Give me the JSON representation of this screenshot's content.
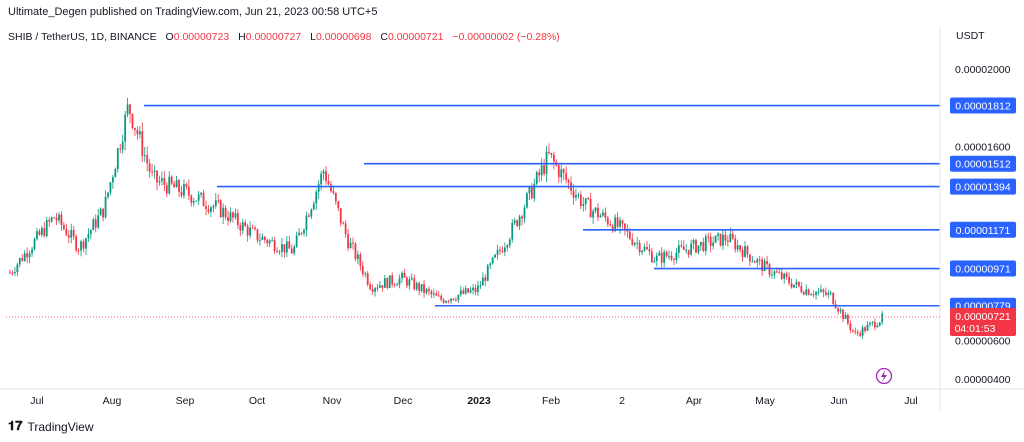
{
  "header": {
    "publisher": "Ultimate_Degen published on TradingView.com, Jun 21, 2023 00:58 UTC+5"
  },
  "symbol_bar": {
    "symbol": "SHIB / TetherUS, 1D, BINANCE",
    "open_label": "O",
    "open": "0.00000723",
    "high_label": "H",
    "high": "0.00000727",
    "low_label": "L",
    "low": "0.00000698",
    "close_label": "C",
    "close": "0.00000721",
    "change": "−0.00000002 (−0.28%)"
  },
  "footer": {
    "brand": "TradingView"
  },
  "colors": {
    "up": "#089981",
    "down": "#f23645",
    "level_line": "#2962ff",
    "price_tag": "#f23645"
  },
  "chart_data": {
    "type": "candlestick",
    "title": "SHIB / TetherUS, 1D, BINANCE",
    "currency": "USDT",
    "x_tick_labels": [
      "Jul",
      "Aug",
      "Sep",
      "Oct",
      "Nov",
      "Dec",
      "2023",
      "Feb",
      "2",
      "Apr",
      "May",
      "Jun",
      "Jul"
    ],
    "y_tick_labels": [
      "0.00002000",
      "0.00001600",
      "0.00000600",
      "0.00000400"
    ],
    "ylim": [
      3.7e-06,
      2.14e-05
    ],
    "grid": false,
    "levels": [
      {
        "value": "0.00001812",
        "start_month": "Aug"
      },
      {
        "value": "0.00001512",
        "start_month": "Nov"
      },
      {
        "value": "0.00001394",
        "start_month": "Sep"
      },
      {
        "value": "0.00001171",
        "start_month": "Feb"
      },
      {
        "value": "0.00000971",
        "start_month": "2"
      },
      {
        "value": "0.00000779",
        "start_month": "Dec"
      }
    ],
    "last_price": "0.00000721",
    "countdown": "04:01:53",
    "ohlc_points": [
      {
        "t": "Jul",
        "v": 9.5e-06
      },
      {
        "t": "Jul",
        "v": 1.24e-05
      },
      {
        "t": "Jul",
        "v": 1.08e-05
      },
      {
        "t": "Aug",
        "v": 1.28e-05
      },
      {
        "t": "Aug",
        "v": 1.81e-05
      },
      {
        "t": "Aug",
        "v": 1.43e-05
      },
      {
        "t": "Sep",
        "v": 1.37e-05
      },
      {
        "t": "Sep",
        "v": 1.28e-05
      },
      {
        "t": "Oct",
        "v": 1.14e-05
      },
      {
        "t": "Oct",
        "v": 1.06e-05
      },
      {
        "t": "Nov",
        "v": 1.48e-05
      },
      {
        "t": "Nov",
        "v": 1.12e-05
      },
      {
        "t": "Nov",
        "v": 8.8e-06
      },
      {
        "t": "Dec",
        "v": 9.2e-06
      },
      {
        "t": "Dec",
        "v": 8.1e-06
      },
      {
        "t": "2023",
        "v": 8.6e-06
      },
      {
        "t": "2023",
        "v": 1.18e-05
      },
      {
        "t": "Feb",
        "v": 1.55e-05
      },
      {
        "t": "Feb",
        "v": 1.3e-05
      },
      {
        "t": "2",
        "v": 1.18e-05
      },
      {
        "t": "2",
        "v": 1.02e-05
      },
      {
        "t": "Apr",
        "v": 1.08e-05
      },
      {
        "t": "Apr",
        "v": 1.13e-05
      },
      {
        "t": "May",
        "v": 9.8e-06
      },
      {
        "t": "May",
        "v": 8.7e-06
      },
      {
        "t": "Jun",
        "v": 8.3e-06
      },
      {
        "t": "Jun",
        "v": 6.3e-06
      },
      {
        "t": "Jun",
        "v": 7.2e-06
      }
    ]
  }
}
